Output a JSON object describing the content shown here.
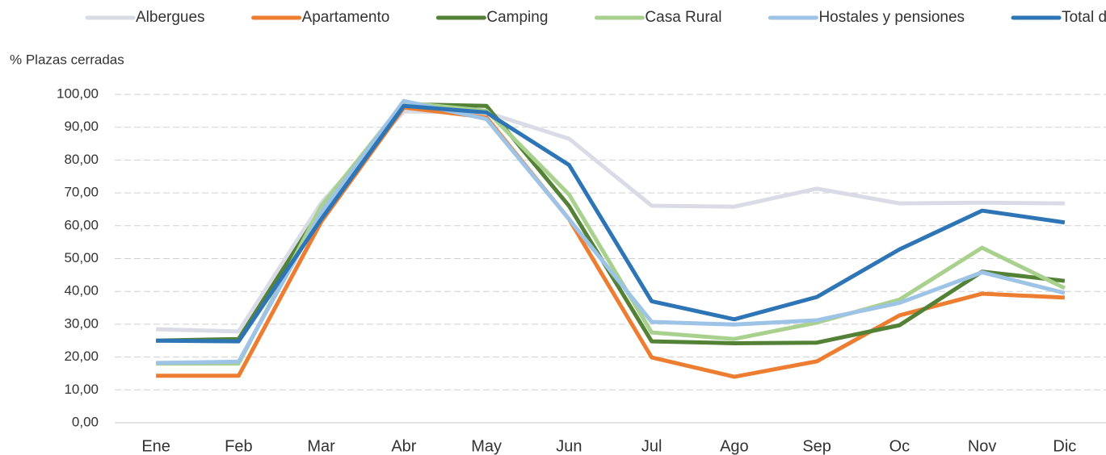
{
  "chart_data": {
    "type": "line",
    "y_label": "% Plazas cerradas",
    "categories": [
      "Ene",
      "Feb",
      "Mar",
      "Abr",
      "May",
      "Jun",
      "Jul",
      "Ago",
      "Sep",
      "Oc",
      "Nov",
      "Dic"
    ],
    "series": [
      {
        "name": "Albergues",
        "color": "#d9dce6",
        "values": [
          28.5,
          27.8,
          67,
          94.8,
          94.5,
          86.5,
          66.1,
          65.8,
          71.3,
          66.8,
          67,
          66.8
        ]
      },
      {
        "name": "Apartamento",
        "color": "#ed7d31",
        "values": [
          14.3,
          14.3,
          61.2,
          96,
          93,
          62,
          19.9,
          14,
          18.7,
          32.7,
          39.3,
          38.1
        ]
      },
      {
        "name": "Camping",
        "color": "#538135",
        "values": [
          25,
          25.5,
          65,
          97,
          96.5,
          66,
          24.8,
          24.2,
          24.4,
          29.7,
          46,
          43.2
        ]
      },
      {
        "name": "Casa Rural",
        "color": "#a9d18e",
        "values": [
          18,
          18,
          66,
          97.5,
          95,
          69.5,
          27.5,
          25.5,
          30.5,
          37.5,
          53.3,
          41
        ]
      },
      {
        "name": "Hostales y pensiones",
        "color": "#9dc3e6",
        "values": [
          18.2,
          18.6,
          64,
          98,
          92.5,
          62,
          30.7,
          29.9,
          31.2,
          36.5,
          45.8,
          39.5
        ]
      },
      {
        "name": "Total de hoteles",
        "color": "#2e75b6",
        "values": [
          25,
          24.8,
          62,
          96.5,
          94.5,
          78.5,
          37,
          31.5,
          38.3,
          52.8,
          64.6,
          61
        ]
      }
    ],
    "ylim": [
      0,
      100
    ],
    "yticks": [
      {
        "value": 0,
        "label": "0,00"
      },
      {
        "value": 10,
        "label": "10,00"
      },
      {
        "value": 20,
        "label": "20,00"
      },
      {
        "value": 30,
        "label": "30,00"
      },
      {
        "value": 40,
        "label": "40,00"
      },
      {
        "value": 50,
        "label": "50,00"
      },
      {
        "value": 60,
        "label": "60,00"
      },
      {
        "value": 70,
        "label": "70,00"
      },
      {
        "value": 80,
        "label": "80,00"
      },
      {
        "value": 90,
        "label": "90,00"
      },
      {
        "value": 100,
        "label": "100,00"
      }
    ],
    "grid": true,
    "legend": "top"
  }
}
